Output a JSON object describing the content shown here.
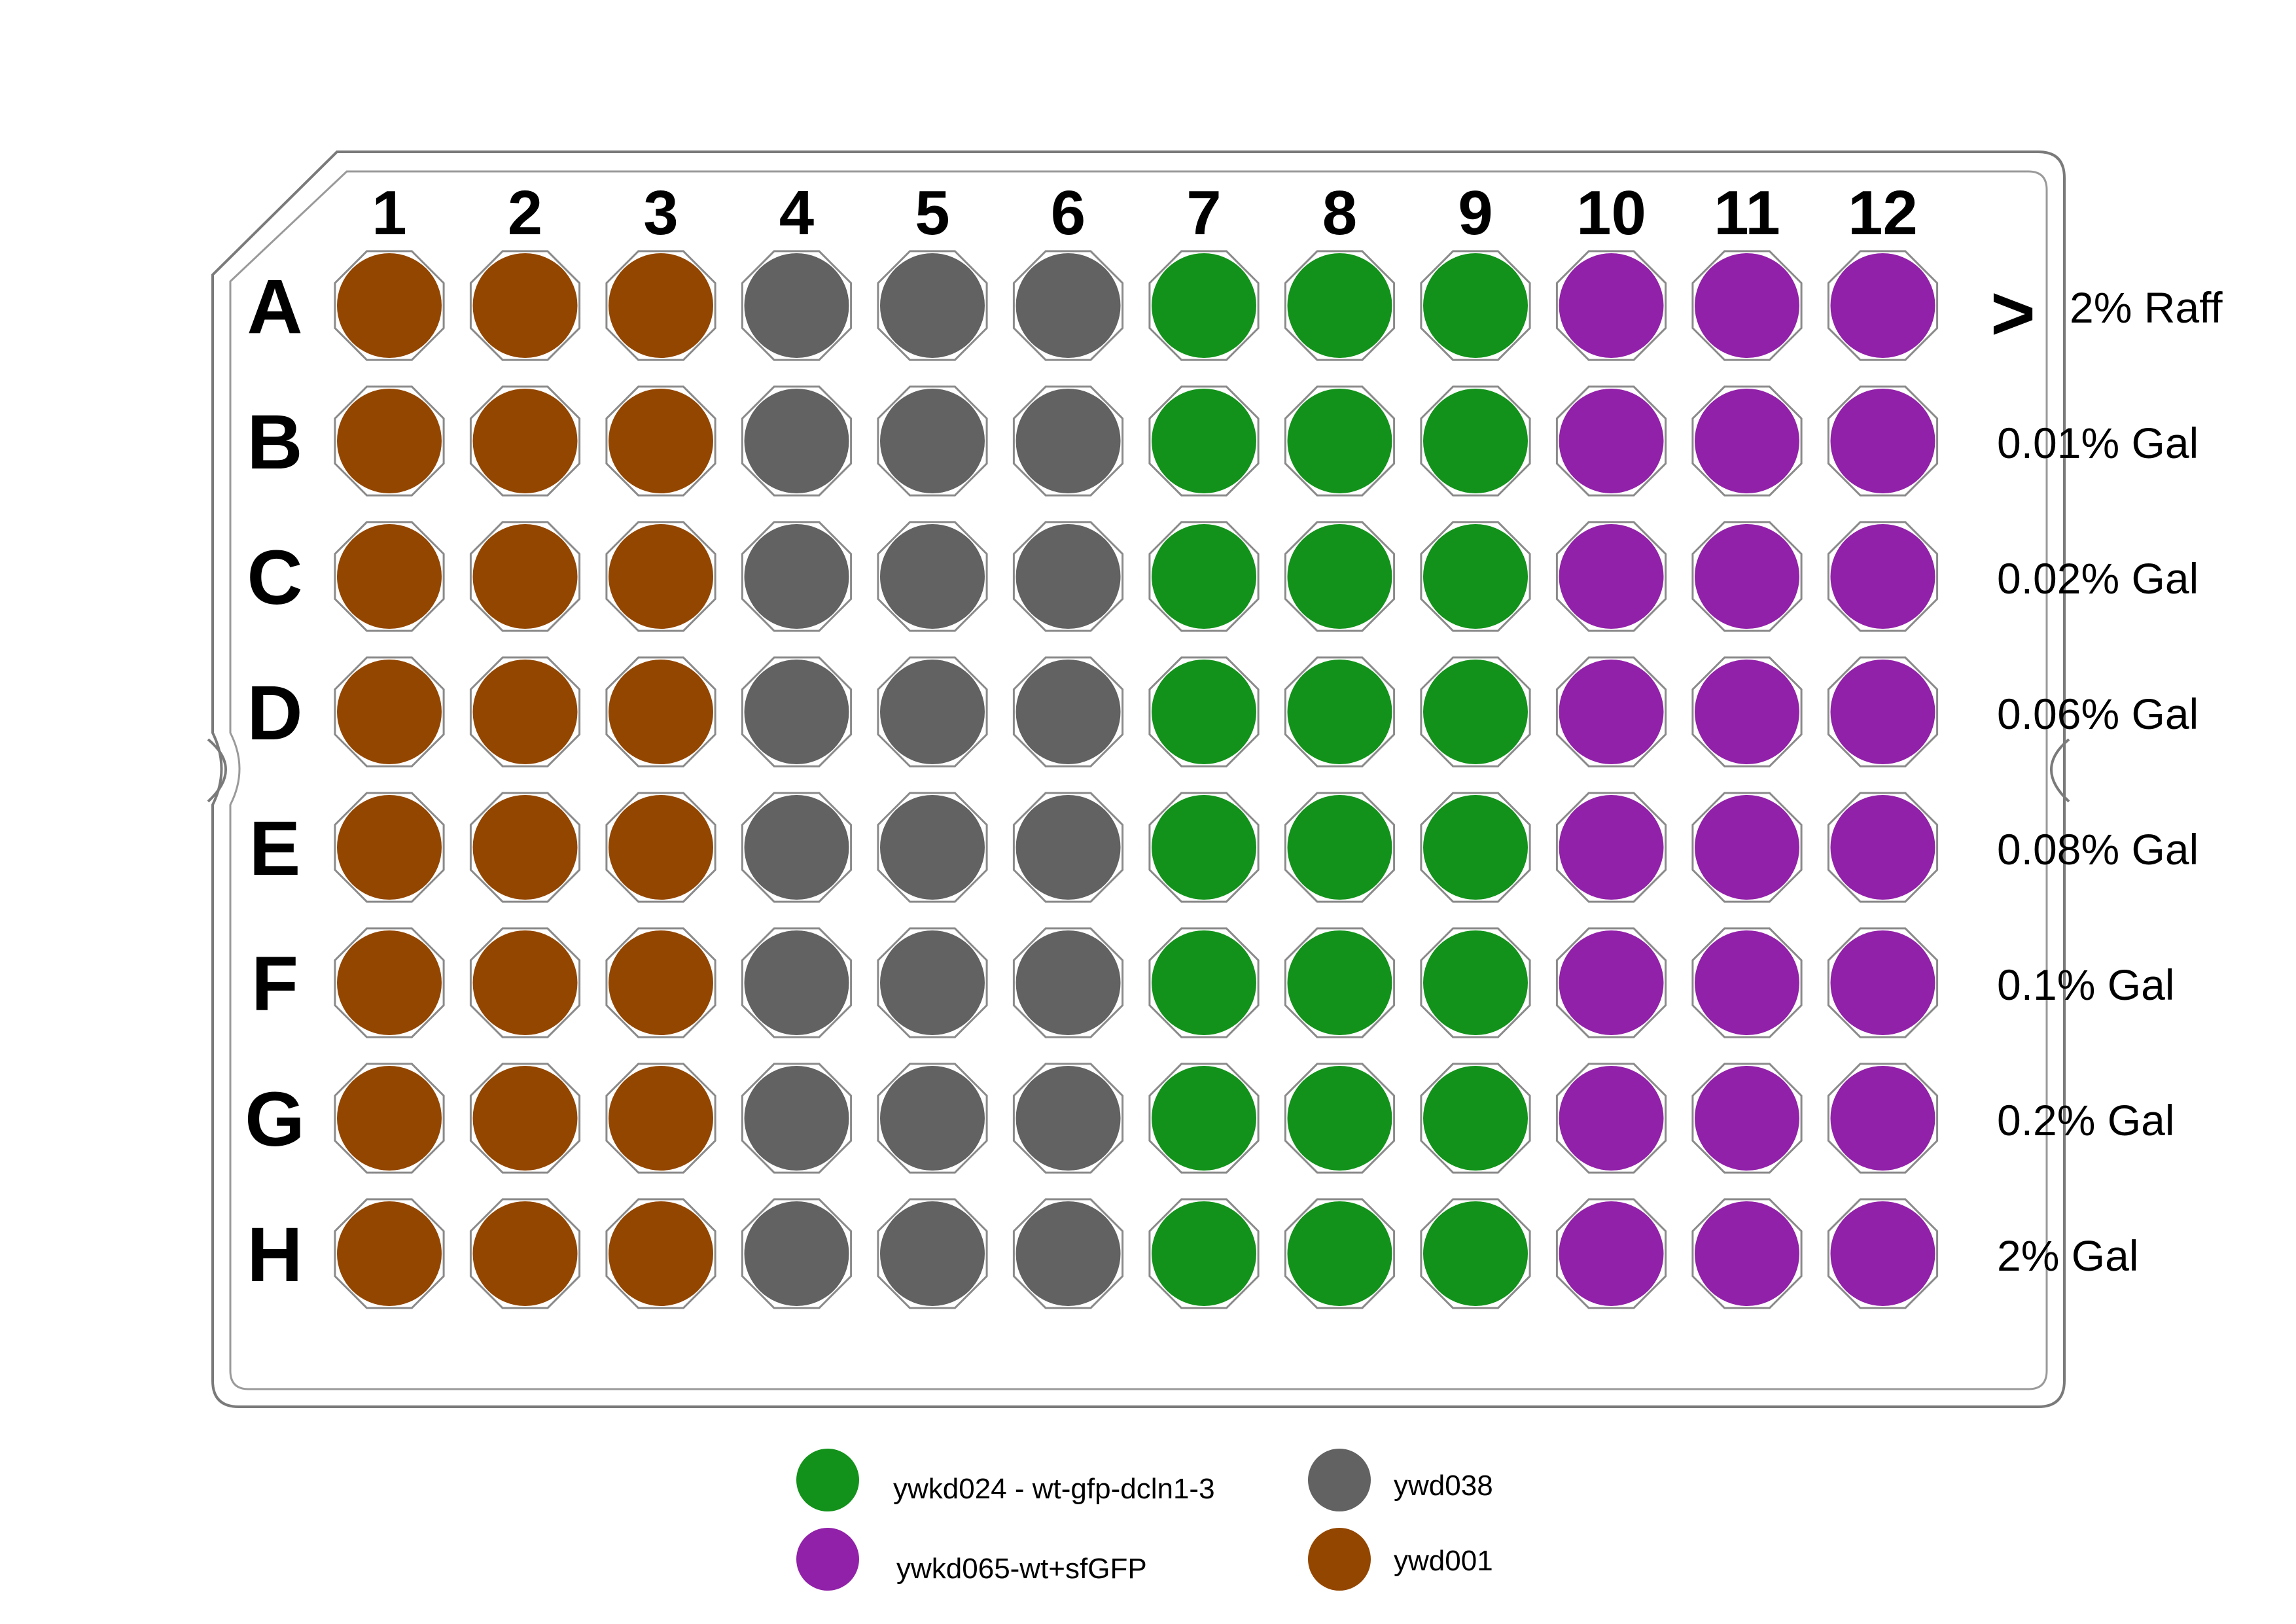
{
  "plate": {
    "columns": [
      "1",
      "2",
      "3",
      "4",
      "5",
      "6",
      "7",
      "8",
      "9",
      "10",
      "11",
      "12"
    ],
    "rows": [
      "A",
      "B",
      "C",
      "D",
      "E",
      "F",
      "G",
      "H"
    ],
    "column_groups": [
      {
        "strain_key": "ywd001",
        "columns": [
          1,
          2,
          3
        ]
      },
      {
        "strain_key": "ywd038",
        "columns": [
          4,
          5,
          6
        ]
      },
      {
        "strain_key": "ywkd024",
        "columns": [
          7,
          8,
          9
        ]
      },
      {
        "strain_key": "ywkd065",
        "columns": [
          10,
          11,
          12
        ]
      }
    ],
    "conditions": [
      "2% Raff",
      "0.01% Gal",
      "0.02% Gal",
      "0.06% Gal",
      "0.08% Gal",
      "0.1% Gal",
      "0.2% Gal",
      "2% Gal"
    ],
    "arrow_glyph": ">"
  },
  "strains": {
    "ywd001": {
      "label": "ywd001",
      "color": "#934600"
    },
    "ywd038": {
      "label": "ywd038",
      "color": "#626262"
    },
    "ywkd024": {
      "label": "ywkd024 - wt-gfp-dcln1-3",
      "color": "#12921a"
    },
    "ywkd065": {
      "label": "ywkd065-wt+sfGFP",
      "color": "#9121a8"
    }
  },
  "legend": [
    {
      "strain_key": "ywkd024"
    },
    {
      "strain_key": "ywd038"
    },
    {
      "strain_key": "ywkd065"
    },
    {
      "strain_key": "ywd001"
    }
  ]
}
